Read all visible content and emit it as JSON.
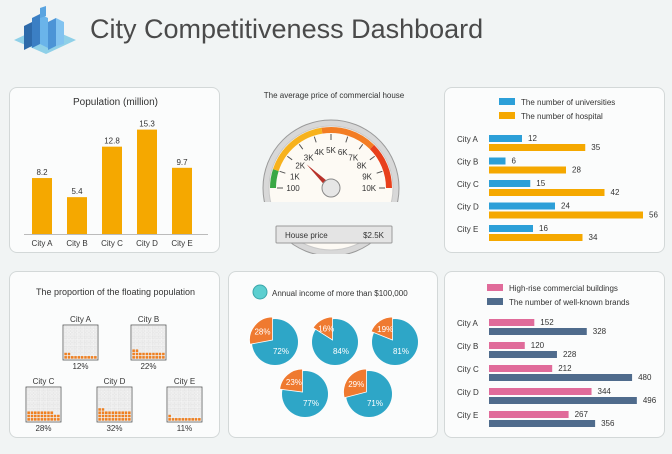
{
  "header": {
    "title": "City Competitiveness Dashboard",
    "logo_icon": "city-buildings-icon"
  },
  "colors": {
    "orange": "#f5a800",
    "blue": "#2c9fd8",
    "pink": "#e06b9a",
    "navy": "#4f6b8c",
    "teal": "#2ea6c7",
    "pie_orange": "#ef7a30",
    "grid_orange": "#f08020"
  },
  "chart_data": [
    {
      "type": "bar",
      "id": "population",
      "title": "Population (million)",
      "categories": [
        "City A",
        "City B",
        "City C",
        "City D",
        "City E"
      ],
      "values": [
        8.2,
        5.4,
        12.8,
        15.3,
        9.7
      ],
      "ylim": [
        0,
        17
      ]
    },
    {
      "type": "gauge",
      "id": "house-price",
      "title": "The average price of commercial house",
      "ticks": [
        "100",
        "1K",
        "2K",
        "3K",
        "4K",
        "5K",
        "6K",
        "7K",
        "8K",
        "9K",
        "10K"
      ],
      "value_label": "House price",
      "value_text": "$2.5K",
      "value": 2.5,
      "range": [
        0,
        10
      ]
    },
    {
      "type": "bar",
      "id": "universities-hospitals",
      "orientation": "horizontal",
      "categories": [
        "City A",
        "City B",
        "City C",
        "City D",
        "City E"
      ],
      "series": [
        {
          "name": "The number of universities",
          "values": [
            12,
            6,
            15,
            24,
            16
          ]
        },
        {
          "name": "The number of hospital",
          "values": [
            35,
            28,
            42,
            56,
            34
          ]
        }
      ],
      "xlim": [
        0,
        60
      ]
    },
    {
      "type": "waffle",
      "id": "floating-population",
      "title": "The proportion of the floating population",
      "categories": [
        "City A",
        "City B",
        "City C",
        "City D",
        "City E"
      ],
      "values": [
        12,
        22,
        28,
        32,
        11
      ],
      "labels": [
        "12%",
        "22%",
        "28%",
        "32%",
        "11%"
      ]
    },
    {
      "type": "pie",
      "id": "annual-income",
      "title": "Annual income of more than $100,000",
      "pies": [
        {
          "small": 28,
          "large": 72,
          "small_label": "28%",
          "large_label": "72%"
        },
        {
          "small": 16,
          "large": 84,
          "small_label": "16%",
          "large_label": "84%"
        },
        {
          "small": 19,
          "large": 81,
          "small_label": "19%",
          "large_label": "81%"
        },
        {
          "small": 23,
          "large": 77,
          "small_label": "23%",
          "large_label": "77%"
        },
        {
          "small": 29,
          "large": 71,
          "small_label": "29%",
          "large_label": "71%"
        }
      ]
    },
    {
      "type": "bar",
      "id": "buildings-brands",
      "orientation": "horizontal",
      "categories": [
        "City A",
        "City B",
        "City C",
        "City D",
        "City E"
      ],
      "series": [
        {
          "name": "High-rise commercial buildings",
          "values": [
            152,
            120,
            212,
            344,
            267
          ]
        },
        {
          "name": "The number of well-known brands",
          "values": [
            328,
            228,
            480,
            496,
            356
          ]
        }
      ],
      "xlim": [
        0,
        520
      ]
    }
  ]
}
